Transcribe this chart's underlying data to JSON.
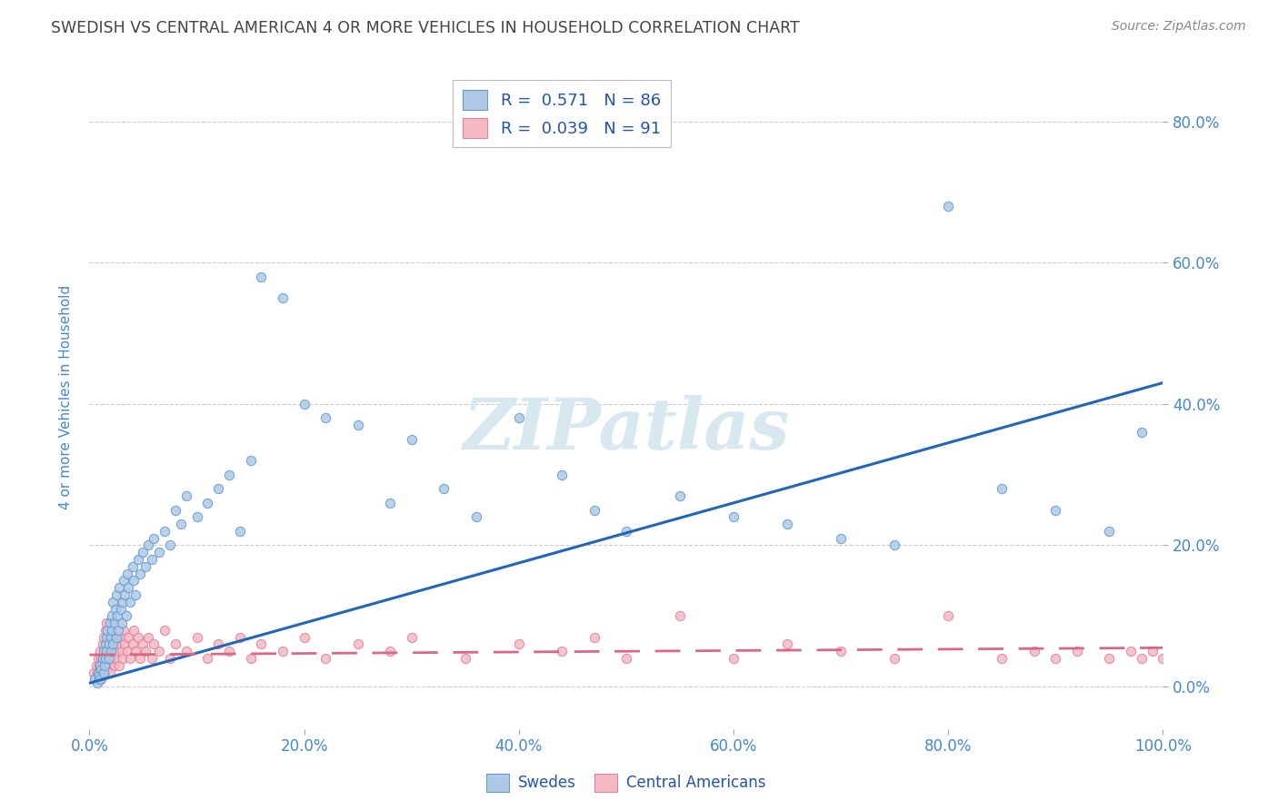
{
  "title": "SWEDISH VS CENTRAL AMERICAN 4 OR MORE VEHICLES IN HOUSEHOLD CORRELATION CHART",
  "source": "Source: ZipAtlas.com",
  "ylabel": "4 or more Vehicles in Household",
  "xlim": [
    0,
    1.0
  ],
  "ylim": [
    -0.06,
    0.88
  ],
  "xtick_vals": [
    0.0,
    0.2,
    0.4,
    0.6,
    0.8,
    1.0
  ],
  "xtick_labels": [
    "0.0%",
    "20.0%",
    "40.0%",
    "60.0%",
    "80.0%",
    "100.0%"
  ],
  "ytick_vals": [
    0.0,
    0.2,
    0.4,
    0.6,
    0.8
  ],
  "ytick_labels": [
    "0.0%",
    "20.0%",
    "40.0%",
    "60.0%",
    "80.0%"
  ],
  "blue_R": 0.571,
  "blue_N": 86,
  "pink_R": 0.039,
  "pink_N": 91,
  "blue_color": "#aec9e8",
  "blue_edge_color": "#6699cc",
  "pink_color": "#f5b8c4",
  "pink_edge_color": "#d9849a",
  "blue_line_color": "#2266bb",
  "pink_line_color": "#dd6688",
  "title_color": "#444444",
  "source_color": "#888888",
  "tick_color": "#4488cc",
  "grid_color": "#cccccc",
  "legend_text_color": "#2255aa",
  "watermark_color": "#d8e8f0",
  "background_color": "#ffffff",
  "blue_line_start_y": 0.005,
  "blue_line_end_y": 0.43,
  "pink_line_start_y": 0.045,
  "pink_line_end_y": 0.055,
  "blue_scatter_x": [
    0.005,
    0.007,
    0.008,
    0.009,
    0.01,
    0.01,
    0.011,
    0.012,
    0.013,
    0.013,
    0.014,
    0.015,
    0.015,
    0.016,
    0.016,
    0.017,
    0.018,
    0.018,
    0.019,
    0.02,
    0.02,
    0.021,
    0.021,
    0.022,
    0.022,
    0.023,
    0.024,
    0.025,
    0.025,
    0.026,
    0.027,
    0.028,
    0.029,
    0.03,
    0.031,
    0.032,
    0.033,
    0.034,
    0.035,
    0.036,
    0.038,
    0.04,
    0.041,
    0.043,
    0.045,
    0.047,
    0.05,
    0.052,
    0.055,
    0.058,
    0.06,
    0.065,
    0.07,
    0.075,
    0.08,
    0.085,
    0.09,
    0.1,
    0.11,
    0.12,
    0.13,
    0.14,
    0.15,
    0.16,
    0.18,
    0.2,
    0.22,
    0.25,
    0.28,
    0.3,
    0.33,
    0.36,
    0.4,
    0.44,
    0.47,
    0.5,
    0.55,
    0.6,
    0.65,
    0.7,
    0.75,
    0.8,
    0.85,
    0.9,
    0.95,
    0.98
  ],
  "blue_scatter_y": [
    0.01,
    0.005,
    0.02,
    0.015,
    0.03,
    0.01,
    0.025,
    0.04,
    0.02,
    0.05,
    0.03,
    0.06,
    0.04,
    0.07,
    0.05,
    0.08,
    0.06,
    0.04,
    0.09,
    0.07,
    0.05,
    0.1,
    0.08,
    0.06,
    0.12,
    0.09,
    0.11,
    0.07,
    0.13,
    0.1,
    0.08,
    0.14,
    0.11,
    0.09,
    0.12,
    0.15,
    0.13,
    0.1,
    0.16,
    0.14,
    0.12,
    0.17,
    0.15,
    0.13,
    0.18,
    0.16,
    0.19,
    0.17,
    0.2,
    0.18,
    0.21,
    0.19,
    0.22,
    0.2,
    0.25,
    0.23,
    0.27,
    0.24,
    0.26,
    0.28,
    0.3,
    0.22,
    0.32,
    0.58,
    0.55,
    0.4,
    0.38,
    0.37,
    0.26,
    0.35,
    0.28,
    0.24,
    0.38,
    0.3,
    0.25,
    0.22,
    0.27,
    0.24,
    0.23,
    0.21,
    0.2,
    0.68,
    0.28,
    0.25,
    0.22,
    0.36
  ],
  "pink_scatter_x": [
    0.004,
    0.005,
    0.006,
    0.007,
    0.008,
    0.008,
    0.009,
    0.01,
    0.01,
    0.011,
    0.011,
    0.012,
    0.013,
    0.013,
    0.014,
    0.014,
    0.015,
    0.015,
    0.016,
    0.016,
    0.017,
    0.017,
    0.018,
    0.018,
    0.019,
    0.02,
    0.02,
    0.021,
    0.022,
    0.023,
    0.024,
    0.025,
    0.026,
    0.027,
    0.028,
    0.029,
    0.03,
    0.031,
    0.032,
    0.033,
    0.035,
    0.036,
    0.038,
    0.04,
    0.041,
    0.043,
    0.045,
    0.047,
    0.05,
    0.052,
    0.055,
    0.058,
    0.06,
    0.065,
    0.07,
    0.075,
    0.08,
    0.09,
    0.1,
    0.11,
    0.12,
    0.13,
    0.14,
    0.15,
    0.16,
    0.18,
    0.2,
    0.22,
    0.25,
    0.28,
    0.3,
    0.35,
    0.4,
    0.44,
    0.47,
    0.5,
    0.55,
    0.6,
    0.65,
    0.7,
    0.75,
    0.8,
    0.85,
    0.88,
    0.9,
    0.92,
    0.95,
    0.97,
    0.98,
    0.99,
    1.0
  ],
  "pink_scatter_y": [
    0.02,
    0.01,
    0.03,
    0.02,
    0.04,
    0.01,
    0.03,
    0.05,
    0.02,
    0.04,
    0.01,
    0.06,
    0.03,
    0.07,
    0.02,
    0.04,
    0.08,
    0.03,
    0.05,
    0.09,
    0.04,
    0.06,
    0.03,
    0.07,
    0.02,
    0.05,
    0.08,
    0.04,
    0.06,
    0.03,
    0.07,
    0.04,
    0.05,
    0.06,
    0.03,
    0.07,
    0.05,
    0.04,
    0.08,
    0.06,
    0.05,
    0.07,
    0.04,
    0.06,
    0.08,
    0.05,
    0.07,
    0.04,
    0.06,
    0.05,
    0.07,
    0.04,
    0.06,
    0.05,
    0.08,
    0.04,
    0.06,
    0.05,
    0.07,
    0.04,
    0.06,
    0.05,
    0.07,
    0.04,
    0.06,
    0.05,
    0.07,
    0.04,
    0.06,
    0.05,
    0.07,
    0.04,
    0.06,
    0.05,
    0.07,
    0.04,
    0.1,
    0.04,
    0.06,
    0.05,
    0.04,
    0.1,
    0.04,
    0.05,
    0.04,
    0.05,
    0.04,
    0.05,
    0.04,
    0.05,
    0.04
  ]
}
